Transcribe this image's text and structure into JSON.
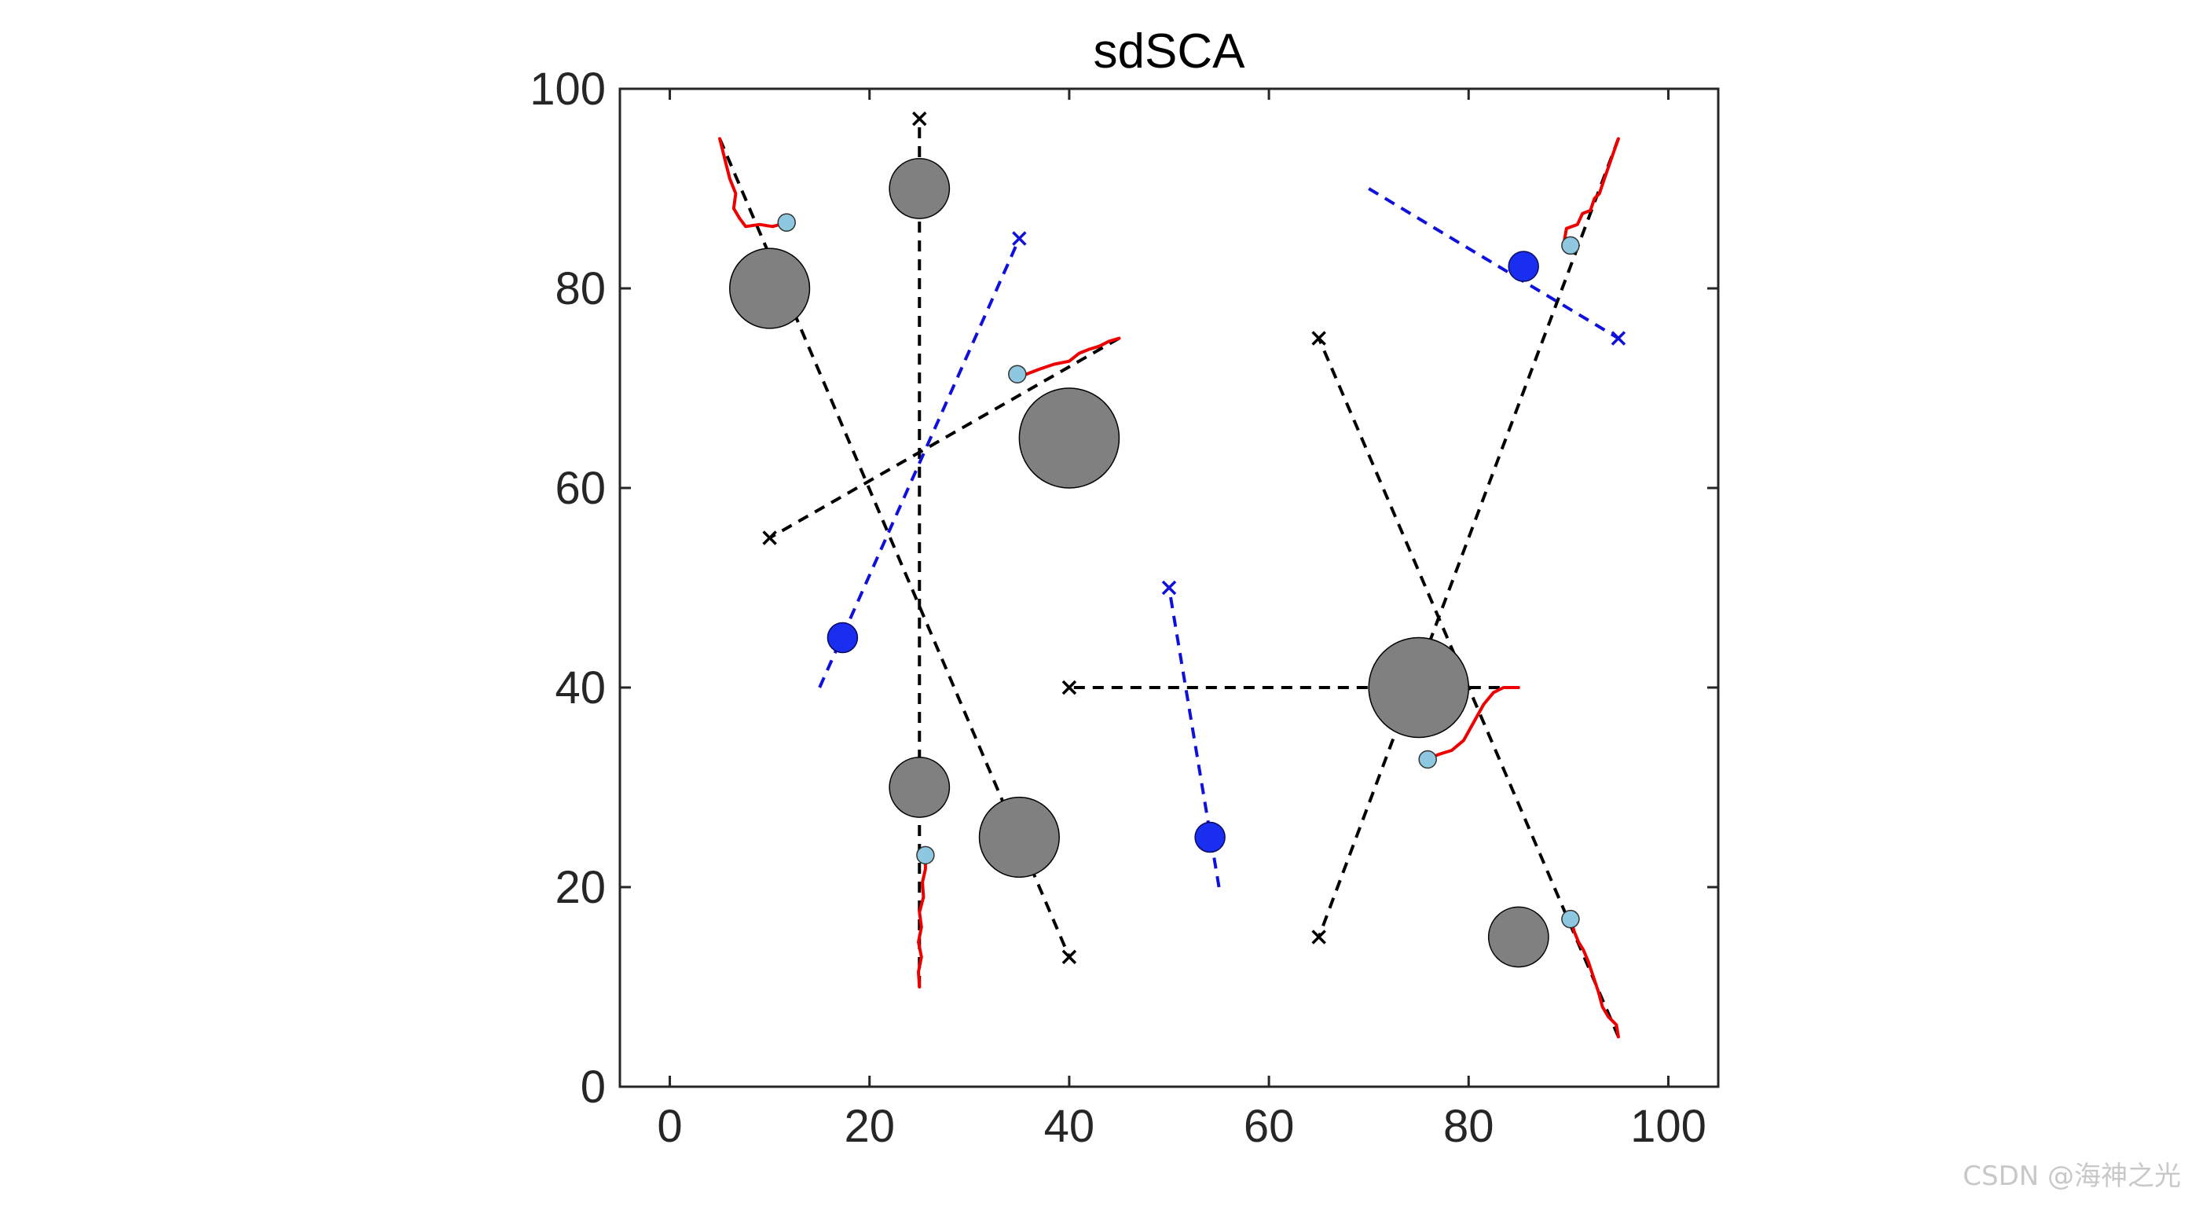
{
  "chart_data": {
    "type": "scatter",
    "title": "sdSCA",
    "xlabel": "",
    "ylabel": "",
    "xlim": [
      -5,
      105
    ],
    "ylim": [
      0,
      100
    ],
    "xticks": [
      0,
      20,
      40,
      60,
      80,
      100
    ],
    "yticks": [
      0,
      20,
      40,
      60,
      80,
      100
    ],
    "grid": false,
    "colors": {
      "obstacle": "#808080",
      "route": "#000000",
      "dynamic_route": "#1010dd",
      "dynamic_obstacle": "#1a2ef0",
      "trajectory": "#ee0000",
      "agent": "#8ec8e0"
    },
    "static_obstacles": [
      {
        "x": 25,
        "y": 90,
        "r": 3
      },
      {
        "x": 10,
        "y": 80,
        "r": 4
      },
      {
        "x": 40,
        "y": 65,
        "r": 5
      },
      {
        "x": 75,
        "y": 40,
        "r": 5
      },
      {
        "x": 25,
        "y": 30,
        "r": 3
      },
      {
        "x": 35,
        "y": 25,
        "r": 4
      },
      {
        "x": 85,
        "y": 15,
        "r": 3
      }
    ],
    "planned_routes": [
      {
        "start": [
          5,
          95
        ],
        "goal": [
          40,
          13
        ]
      },
      {
        "start": [
          25,
          10
        ],
        "goal": [
          25,
          97
        ]
      },
      {
        "start": [
          45,
          75
        ],
        "goal": [
          10,
          55
        ]
      },
      {
        "start": [
          85,
          40
        ],
        "goal": [
          40,
          40
        ]
      },
      {
        "start": [
          95,
          95
        ],
        "goal": [
          65,
          15
        ]
      },
      {
        "start": [
          95,
          5
        ],
        "goal": [
          65,
          75
        ]
      }
    ],
    "dynamic_obstacle_paths": [
      {
        "start": [
          15,
          40
        ],
        "goal": [
          35,
          85
        ],
        "position": [
          17.3,
          45
        ]
      },
      {
        "start": [
          55,
          20
        ],
        "goal": [
          50,
          50
        ],
        "position": [
          54.1,
          25
        ]
      },
      {
        "start": [
          70,
          90
        ],
        "goal": [
          95,
          75
        ],
        "position": [
          85.5,
          82.2
        ]
      }
    ],
    "trajectories": [
      {
        "points": [
          [
            5,
            95
          ],
          [
            5.5,
            93
          ],
          [
            6,
            91
          ],
          [
            6.6,
            89.5
          ],
          [
            6.4,
            88
          ],
          [
            7,
            87
          ],
          [
            7.6,
            86.2
          ],
          [
            9,
            86.4
          ],
          [
            10.3,
            86.2
          ],
          [
            11.7,
            86.6
          ]
        ],
        "agent": [
          11.7,
          86.6
        ]
      },
      {
        "points": [
          [
            25,
            10
          ],
          [
            24.9,
            11.5
          ],
          [
            25.2,
            13
          ],
          [
            24.9,
            14.5
          ],
          [
            25.2,
            16
          ],
          [
            25,
            17.5
          ],
          [
            25.4,
            19
          ],
          [
            25.3,
            20.5
          ],
          [
            25.6,
            21.8
          ],
          [
            25.6,
            23.2
          ]
        ],
        "agent": [
          25.6,
          23.2
        ]
      },
      {
        "points": [
          [
            45,
            75
          ],
          [
            44,
            74.7
          ],
          [
            43,
            74.2
          ],
          [
            42,
            73.9
          ],
          [
            41,
            73.5
          ],
          [
            40,
            72.7
          ],
          [
            38.5,
            72.4
          ],
          [
            37,
            71.9
          ],
          [
            35.7,
            71.4
          ],
          [
            34.8,
            71.4
          ]
        ],
        "agent": [
          34.8,
          71.4
        ]
      },
      {
        "points": [
          [
            85,
            40
          ],
          [
            83.5,
            40
          ],
          [
            82.5,
            39.5
          ],
          [
            81.5,
            38.3
          ],
          [
            80.5,
            36.5
          ],
          [
            79.5,
            34.7
          ],
          [
            78.3,
            33.7
          ],
          [
            77,
            33.3
          ],
          [
            75.9,
            32.8
          ]
        ],
        "agent": [
          75.9,
          32.8
        ]
      },
      {
        "points": [
          [
            95,
            95
          ],
          [
            94.3,
            93
          ],
          [
            93.6,
            91
          ],
          [
            93.1,
            89.5
          ],
          [
            92.6,
            89
          ],
          [
            92.2,
            87.8
          ],
          [
            91.4,
            87.5
          ],
          [
            90.9,
            86.4
          ],
          [
            89.8,
            86
          ],
          [
            89.6,
            84.9
          ],
          [
            90.2,
            84.3
          ]
        ],
        "agent": [
          90.2,
          84.3
        ]
      },
      {
        "points": [
          [
            95,
            5
          ],
          [
            94.8,
            6.2
          ],
          [
            94,
            7
          ],
          [
            93.4,
            8
          ],
          [
            93,
            9.5
          ],
          [
            92.5,
            11
          ],
          [
            92,
            12.5
          ],
          [
            91.5,
            13.7
          ],
          [
            91,
            14.5
          ],
          [
            90.6,
            15.5
          ],
          [
            90.2,
            16.8
          ]
        ],
        "agent": [
          90.2,
          16.8
        ]
      }
    ]
  },
  "watermark": "CSDN @海神之光"
}
